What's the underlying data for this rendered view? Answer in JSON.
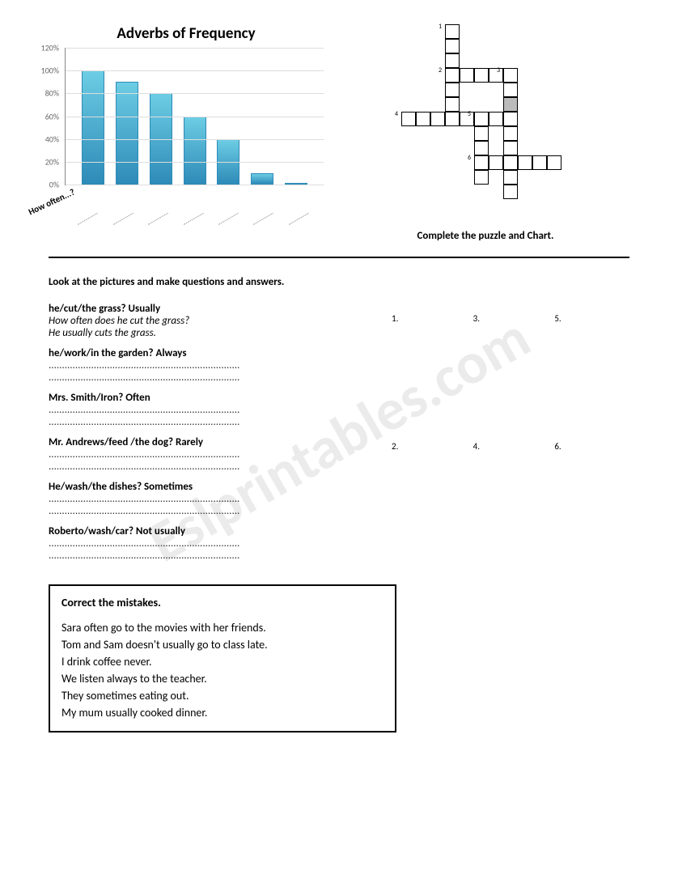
{
  "watermark": "Eslprintables.com",
  "chart": {
    "type": "bar",
    "title": "Adverbs of Frequency",
    "categories": [
      "",
      "",
      "",
      "",
      "",
      "",
      ""
    ],
    "values": [
      100,
      90,
      80,
      60,
      40,
      10,
      0
    ],
    "bar_color_top": "#6ccde4",
    "bar_color_bottom": "#2e8bb8",
    "ylim": [
      0,
      120
    ],
    "ytick_step": 20,
    "yticks": [
      "0%",
      "20%",
      "40%",
      "60%",
      "80%",
      "100%",
      "120%"
    ],
    "grid_color": "#dddddd",
    "background_color": "#ffffff",
    "axis_label": "How often...?",
    "title_fontsize": 19
  },
  "puzzle": {
    "caption": "Complete the puzzle and Chart.",
    "cell_size": 18,
    "words": [
      {
        "n": 1,
        "row": 0,
        "col": 5,
        "len": 6,
        "dir": "down"
      },
      {
        "n": 2,
        "row": 3,
        "col": 5,
        "len": 5,
        "dir": "across"
      },
      {
        "n": 3,
        "row": 3,
        "col": 9,
        "len": 9,
        "dir": "down"
      },
      {
        "n": 4,
        "row": 6,
        "col": 2,
        "len": 7,
        "dir": "across"
      },
      {
        "n": 5,
        "row": 6,
        "col": 7,
        "len": 5,
        "dir": "down"
      },
      {
        "n": 6,
        "row": 9,
        "col": 7,
        "len": 6,
        "dir": "across"
      }
    ],
    "shaded": [
      {
        "row": 5,
        "col": 9
      }
    ]
  },
  "section2": {
    "instruction": "Look at the pictures and make questions and answers.",
    "example": {
      "prompt": "he/cut/the grass?           Usually",
      "q": "How often does he cut the grass?",
      "a": "He usually cuts the grass."
    },
    "items": [
      {
        "prompt": "he/work/in the garden?            Always"
      },
      {
        "prompt": "Mrs. Smith/Iron?             Often"
      },
      {
        "prompt": "Mr. Andrews/feed /the dog?      Rarely"
      },
      {
        "prompt": "He/wash/the dishes?      Sometimes"
      },
      {
        "prompt": "Roberto/wash/car?       Not usually"
      }
    ],
    "dotted_line": "........................................................................"
  },
  "pictures": [
    {
      "num": "1.",
      "name": "mowing-lawn"
    },
    {
      "num": "2.",
      "name": "gardening"
    },
    {
      "num": "3.",
      "name": "ironing"
    },
    {
      "num": "4.",
      "name": "feeding-dog"
    },
    {
      "num": "5.",
      "name": "washing-dishes"
    },
    {
      "num": "6.",
      "name": "washing-car"
    }
  ],
  "mistakes": {
    "title": "Correct the mistakes.",
    "lines": [
      "Sara often go to the movies with her friends.",
      "Tom and Sam doesn't usually go to class  late.",
      "I drink coffee never.",
      "We listen always to the teacher.",
      "They sometimes eating out.",
      "My mum usually cooked dinner."
    ]
  }
}
